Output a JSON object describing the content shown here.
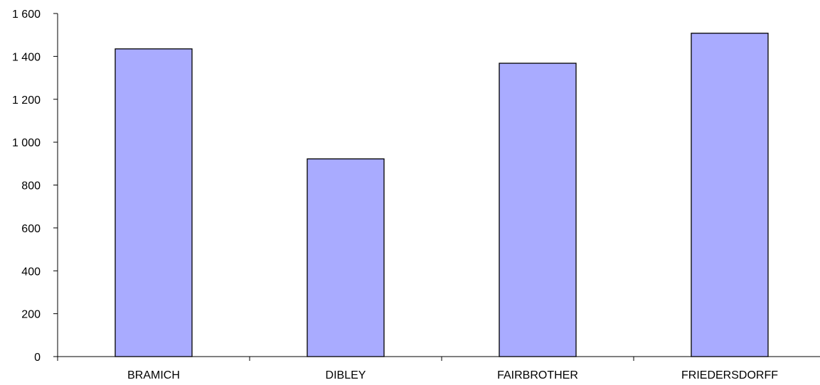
{
  "chart_data": {
    "type": "bar",
    "title": "",
    "xlabel": "",
    "ylabel": "",
    "categories": [
      "BRAMICH",
      "DIBLEY",
      "FAIRBROTHER",
      "FRIEDERSDORFF"
    ],
    "values": [
      1435,
      922,
      1368,
      1508
    ],
    "ylim": [
      0,
      1600
    ],
    "yticks": [
      0,
      200,
      400,
      600,
      800,
      1000,
      1200,
      1400,
      1600
    ],
    "ytick_labels": [
      "0",
      "200",
      "400",
      "600",
      "800",
      "1 000",
      "1 200",
      "1 400",
      "1 600"
    ],
    "grid": false,
    "legend": "none",
    "bar_color": "#A9ABFF",
    "bar_edge_color": "#000000"
  }
}
